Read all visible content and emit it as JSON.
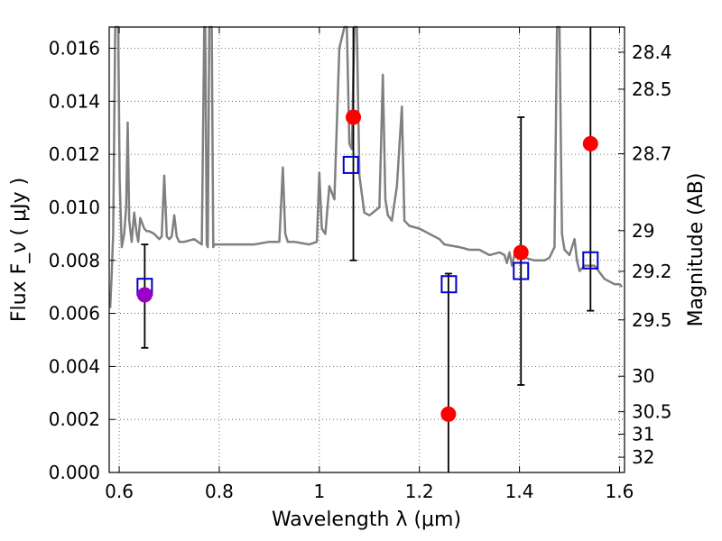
{
  "chart_data": {
    "type": "scatter",
    "xlabel": "Wavelength  λ (μm)",
    "ylabel": "Flux  F_ν  ( μJy )",
    "y2label": "Magnitude (AB)",
    "xlim": [
      0.58,
      1.61
    ],
    "ylim": [
      0.0,
      0.0168
    ],
    "grid": true,
    "x_ticks": [
      0.6,
      0.8,
      1.0,
      1.2,
      1.4,
      1.6
    ],
    "x_tick_labels": [
      "0.6",
      "0.8",
      "1",
      "1.2",
      "1.4",
      "1.6"
    ],
    "y_ticks": [
      0.0,
      0.002,
      0.004,
      0.006,
      0.008,
      0.01,
      0.012,
      0.014,
      0.016
    ],
    "y_tick_labels": [
      "0.000",
      "0.002",
      "0.004",
      "0.006",
      "0.008",
      "0.010",
      "0.012",
      "0.014",
      "0.016"
    ],
    "y2_ticks": [
      28.4,
      28.5,
      28.7,
      29.0,
      29.2,
      29.5,
      30.0,
      30.5,
      31.0,
      32.0
    ],
    "y2_tick_labels": [
      "28.4",
      "28.5",
      "28.7",
      "29",
      "29.2",
      "29.5",
      "30",
      "30.5",
      "31",
      "32"
    ],
    "model_spectrum": {
      "color": "#808080",
      "x": [
        0.582,
        0.585,
        0.588,
        0.592,
        0.595,
        0.598,
        0.601,
        0.605,
        0.61,
        0.614,
        0.617,
        0.62,
        0.625,
        0.63,
        0.635,
        0.638,
        0.642,
        0.65,
        0.655,
        0.66,
        0.67,
        0.68,
        0.685,
        0.69,
        0.695,
        0.7,
        0.705,
        0.71,
        0.715,
        0.72,
        0.73,
        0.75,
        0.765,
        0.77,
        0.772,
        0.775,
        0.777,
        0.78,
        0.785,
        0.788,
        0.79,
        0.792,
        0.795,
        0.8,
        0.82,
        0.85,
        0.87,
        0.9,
        0.92,
        0.927,
        0.932,
        0.937,
        0.95,
        0.98,
        0.995,
        1.0,
        1.005,
        1.012,
        1.02,
        1.03,
        1.04,
        1.05,
        1.055,
        1.06,
        1.065,
        1.07,
        1.075,
        1.08,
        1.09,
        1.1,
        1.12,
        1.127,
        1.132,
        1.137,
        1.145,
        1.155,
        1.165,
        1.17,
        1.18,
        1.2,
        1.24,
        1.25,
        1.28,
        1.3,
        1.32,
        1.34,
        1.36,
        1.37,
        1.375,
        1.38,
        1.385,
        1.39,
        1.4,
        1.41,
        1.43,
        1.45,
        1.46,
        1.47,
        1.475,
        1.48,
        1.485,
        1.49,
        1.5,
        1.51,
        1.515,
        1.52,
        1.53,
        1.55,
        1.57,
        1.59,
        1.6,
        1.605
      ],
      "y": [
        0.0062,
        0.0075,
        0.009,
        0.0168,
        0.0168,
        0.0168,
        0.011,
        0.0085,
        0.009,
        0.01,
        0.0132,
        0.0095,
        0.0087,
        0.0098,
        0.009,
        0.0087,
        0.0096,
        0.0092,
        0.0091,
        0.0091,
        0.009,
        0.0088,
        0.0089,
        0.0112,
        0.0089,
        0.0088,
        0.0089,
        0.0097,
        0.0089,
        0.0087,
        0.0087,
        0.0088,
        0.0086,
        0.0168,
        0.0168,
        0.0086,
        0.0085,
        0.0168,
        0.0168,
        0.0085,
        0.0086,
        0.0086,
        0.0086,
        0.0086,
        0.0086,
        0.0086,
        0.0086,
        0.0087,
        0.0087,
        0.0115,
        0.009,
        0.0087,
        0.0087,
        0.0086,
        0.0087,
        0.0113,
        0.0092,
        0.009,
        0.0108,
        0.0103,
        0.016,
        0.0168,
        0.0168,
        0.0124,
        0.0122,
        0.0168,
        0.0168,
        0.0112,
        0.0098,
        0.0097,
        0.01,
        0.015,
        0.0103,
        0.0097,
        0.0095,
        0.0108,
        0.0138,
        0.0095,
        0.0093,
        0.0092,
        0.0088,
        0.0086,
        0.0085,
        0.0084,
        0.0084,
        0.0082,
        0.0083,
        0.0082,
        0.0079,
        0.0083,
        0.0078,
        0.0082,
        0.0083,
        0.0081,
        0.008,
        0.008,
        0.0081,
        0.0085,
        0.0168,
        0.0168,
        0.009,
        0.0084,
        0.0082,
        0.0088,
        0.008,
        0.0076,
        0.0078,
        0.0078,
        0.0073,
        0.0071,
        0.0071,
        0.007
      ]
    },
    "error_bars": [
      {
        "x": 0.651,
        "low": 0.0047,
        "high": 0.0086
      },
      {
        "x": 1.068,
        "low": 0.008,
        "high": 0.0168
      },
      {
        "x": 1.258,
        "low": 0.0,
        "high": 0.0075
      },
      {
        "x": 1.403,
        "low": 0.0033,
        "high": 0.0134
      },
      {
        "x": 1.542,
        "low": 0.0061,
        "high": 0.0168
      }
    ],
    "observed_points": [
      {
        "x": 0.651,
        "y": 0.0067,
        "color": "#9a00c8"
      },
      {
        "x": 1.068,
        "y": 0.0134,
        "color": "#ff0000"
      },
      {
        "x": 1.258,
        "y": 0.0022,
        "color": "#ff0000"
      },
      {
        "x": 1.403,
        "y": 0.0083,
        "color": "#ff0000"
      },
      {
        "x": 1.542,
        "y": 0.0124,
        "color": "#ff0000"
      }
    ],
    "model_points": {
      "color": "#0000cc",
      "points": [
        {
          "x": 0.651,
          "y": 0.007
        },
        {
          "x": 1.063,
          "y": 0.0116
        },
        {
          "x": 1.259,
          "y": 0.0071
        },
        {
          "x": 1.403,
          "y": 0.0076
        },
        {
          "x": 1.542,
          "y": 0.008
        }
      ]
    }
  }
}
